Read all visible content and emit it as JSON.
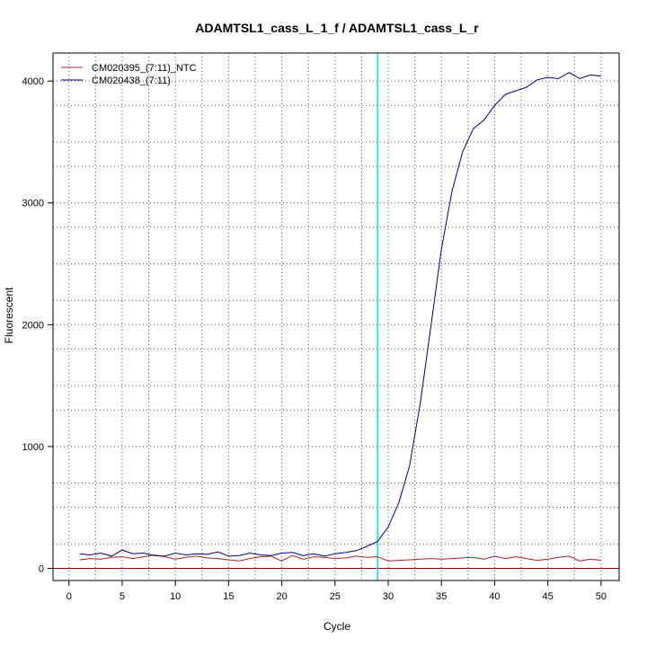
{
  "chart_data": {
    "type": "line",
    "title": "ADAMTSL1_cass_L_1_f / ADAMTSL1_cass_L_r",
    "xlabel": "Cycle",
    "ylabel": "Fluorescent",
    "xlim": [
      -1.5,
      51.7
    ],
    "ylim": [
      -100,
      4230
    ],
    "x_ticks": [
      0,
      5,
      10,
      15,
      20,
      25,
      30,
      35,
      40,
      45,
      50
    ],
    "y_ticks": [
      0,
      1000,
      2000,
      3000,
      4000
    ],
    "x_grid": [
      0,
      2.5,
      5,
      7.5,
      10,
      12.5,
      15,
      17.5,
      20,
      22.5,
      25,
      27.5,
      30,
      32.5,
      35,
      37.5,
      40,
      42.5,
      45,
      47.5,
      50
    ],
    "y_grid": [
      0,
      200,
      500,
      700,
      1000,
      1300,
      1500,
      1800,
      2000,
      2200,
      2500,
      2800,
      3000,
      3300,
      3500,
      3800,
      4000
    ],
    "grid": true,
    "threshold_cycle": 29,
    "threshold_color": "#00e5ee",
    "baseline_value": 0,
    "baseline_color": "#8b0000",
    "legend_position": "top-left",
    "x": [
      1,
      2,
      3,
      4,
      5,
      6,
      7,
      8,
      9,
      10,
      11,
      12,
      13,
      14,
      15,
      16,
      17,
      18,
      19,
      20,
      21,
      22,
      23,
      24,
      25,
      26,
      27,
      28,
      29,
      30,
      31,
      32,
      33,
      34,
      35,
      36,
      37,
      38,
      39,
      40,
      41,
      42,
      43,
      44,
      45,
      46,
      47,
      48,
      49,
      50
    ],
    "series": [
      {
        "name": "CM020395_(7:11)_NTC",
        "color": "#b22222",
        "values": [
          70,
          80,
          75,
          90,
          95,
          80,
          95,
          110,
          95,
          75,
          90,
          100,
          85,
          80,
          70,
          60,
          80,
          95,
          100,
          60,
          105,
          75,
          95,
          90,
          80,
          85,
          100,
          90,
          95,
          60,
          65,
          70,
          75,
          80,
          75,
          80,
          85,
          90,
          75,
          100,
          80,
          95,
          80,
          65,
          75,
          90,
          100,
          60,
          75,
          65
        ]
      },
      {
        "name": "CM020438_(7:11)",
        "color": "#000080",
        "values": [
          120,
          110,
          125,
          100,
          150,
          120,
          125,
          105,
          100,
          125,
          110,
          120,
          115,
          135,
          100,
          105,
          125,
          110,
          105,
          125,
          130,
          105,
          120,
          100,
          120,
          130,
          145,
          180,
          220,
          340,
          540,
          840,
          1350,
          1980,
          2620,
          3100,
          3420,
          3610,
          3680,
          3800,
          3890,
          3920,
          3950,
          4010,
          4030,
          4020,
          4070,
          4020,
          4050,
          4040
        ]
      }
    ]
  }
}
